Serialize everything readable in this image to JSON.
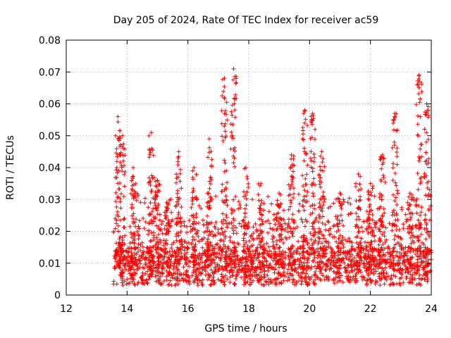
{
  "chart_data": {
    "type": "scatter",
    "title": "Day 205 of 2024, Rate Of TEC Index for receiver ac59",
    "xlabel": "GPS time / hours",
    "ylabel": "ROTI / TECUs",
    "xlim": [
      12,
      24
    ],
    "ylim": [
      0,
      0.08
    ],
    "x_ticks": [
      "12",
      "14",
      "16",
      "18",
      "20",
      "22",
      "24"
    ],
    "y_ticks": [
      "0",
      "0.01",
      "0.02",
      "0.03",
      "0.04",
      "0.05",
      "0.06",
      "0.07",
      "0.08"
    ],
    "grid": true,
    "marker": "+",
    "color": "#ff0000",
    "peaks": [
      {
        "x": 13.7,
        "y": 0.056
      },
      {
        "x": 13.85,
        "y": 0.05
      },
      {
        "x": 14.2,
        "y": 0.04
      },
      {
        "x": 14.8,
        "y": 0.051
      },
      {
        "x": 15.0,
        "y": 0.036
      },
      {
        "x": 15.3,
        "y": 0.029
      },
      {
        "x": 15.7,
        "y": 0.045
      },
      {
        "x": 16.2,
        "y": 0.04
      },
      {
        "x": 16.7,
        "y": 0.049
      },
      {
        "x": 17.2,
        "y": 0.068
      },
      {
        "x": 17.5,
        "y": 0.071
      },
      {
        "x": 17.9,
        "y": 0.04
      },
      {
        "x": 18.4,
        "y": 0.035
      },
      {
        "x": 19.0,
        "y": 0.032
      },
      {
        "x": 19.4,
        "y": 0.044
      },
      {
        "x": 19.85,
        "y": 0.058
      },
      {
        "x": 20.1,
        "y": 0.057
      },
      {
        "x": 20.4,
        "y": 0.045
      },
      {
        "x": 21.0,
        "y": 0.032
      },
      {
        "x": 21.6,
        "y": 0.038
      },
      {
        "x": 22.0,
        "y": 0.035
      },
      {
        "x": 22.4,
        "y": 0.044
      },
      {
        "x": 22.8,
        "y": 0.057
      },
      {
        "x": 23.3,
        "y": 0.032
      },
      {
        "x": 23.6,
        "y": 0.069
      },
      {
        "x": 23.85,
        "y": 0.06
      }
    ],
    "generated_cloud": {
      "x_range": [
        13.55,
        24.0
      ],
      "seed": 205,
      "count": 2200
    }
  }
}
